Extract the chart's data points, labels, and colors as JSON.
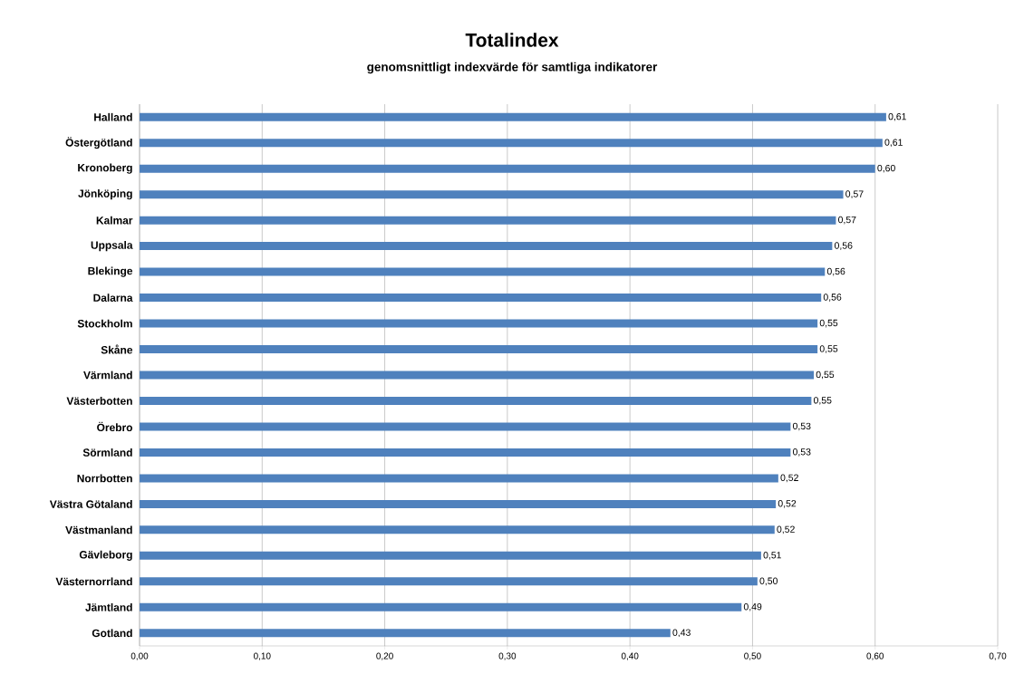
{
  "chart_data": {
    "type": "bar",
    "orientation": "horizontal",
    "title": "Totalindex",
    "subtitle": "genomsnittligt indexvärde för samtliga indikatorer",
    "categories": [
      "Halland",
      "Östergötland",
      "Kronoberg",
      "Jönköping",
      "Kalmar",
      "Uppsala",
      "Blekinge",
      "Dalarna",
      "Stockholm",
      "Skåne",
      "Värmland",
      "Västerbotten",
      "Örebro",
      "Sörmland",
      "Norrbotten",
      "Västra Götaland",
      "Västmanland",
      "Gävleborg",
      "Västernorrland",
      "Jämtland",
      "Gotland"
    ],
    "values": [
      0.609,
      0.606,
      0.6,
      0.574,
      0.568,
      0.565,
      0.559,
      0.556,
      0.553,
      0.553,
      0.55,
      0.548,
      0.531,
      0.531,
      0.521,
      0.519,
      0.518,
      0.507,
      0.504,
      0.491,
      0.433
    ],
    "value_labels": [
      "0,61",
      "0,61",
      "0,60",
      "0,57",
      "0,57",
      "0,56",
      "0,56",
      "0,56",
      "0,55",
      "0,55",
      "0,55",
      "0,55",
      "0,53",
      "0,53",
      "0,52",
      "0,52",
      "0,52",
      "0,51",
      "0,50",
      "0,49",
      "0,43"
    ],
    "color": "#4f81bd",
    "xlim": [
      0,
      0.7
    ],
    "xticks": [
      {
        "value": 0,
        "label": "0,00"
      },
      {
        "value": 0.1,
        "label": "0,10"
      },
      {
        "value": 0.2,
        "label": "0,20"
      },
      {
        "value": 0.3,
        "label": "0,30"
      },
      {
        "value": 0.4,
        "label": "0,40"
      },
      {
        "value": 0.5,
        "label": "0,50"
      },
      {
        "value": 0.6,
        "label": "0,60"
      },
      {
        "value": 0.7,
        "label": "0,70"
      }
    ],
    "grid": "x"
  }
}
